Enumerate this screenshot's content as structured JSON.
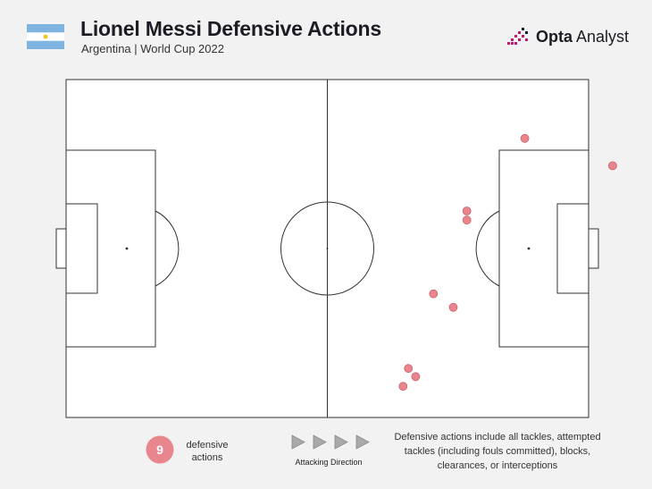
{
  "header": {
    "title": "Lionel Messi Defensive Actions",
    "subtitle": "Argentina | World Cup 2022"
  },
  "brand": {
    "name": "Opta",
    "sub": "Analyst"
  },
  "colors": {
    "point": "#e8858d",
    "badge": "#e8858d",
    "pitch_line": "#333333",
    "flag_blue": "#7fb3e0",
    "flag_white": "#ffffff",
    "flag_sun": "#f0c419",
    "logo_pink": "#c2186b",
    "logo_dark": "#1c1c24"
  },
  "legend": {
    "count": "9",
    "label": "defensive actions",
    "direction_label": "Attacking Direction",
    "note": "Defensive actions include all tackles, attempted tackles (including fouls committed), blocks, clearances, or interceptions"
  },
  "chart_data": {
    "type": "scatter",
    "pitch_length": 100,
    "pitch_width": 100,
    "attacking_direction": "left-to-right",
    "points": [
      {
        "x": 87.8,
        "y": 82.6
      },
      {
        "x": 104.6,
        "y": 74.5
      },
      {
        "x": 76.7,
        "y": 61.1
      },
      {
        "x": 76.7,
        "y": 58.4
      },
      {
        "x": 70.3,
        "y": 36.6
      },
      {
        "x": 74.1,
        "y": 32.6
      },
      {
        "x": 65.5,
        "y": 14.5
      },
      {
        "x": 66.9,
        "y": 12.1
      },
      {
        "x": 64.5,
        "y": 9.2
      }
    ]
  }
}
